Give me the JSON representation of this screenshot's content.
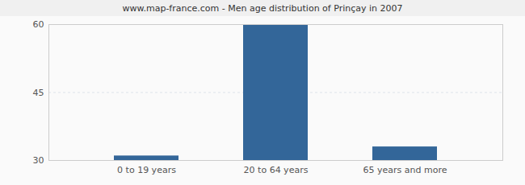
{
  "chart_data": {
    "type": "bar",
    "title": "www.map-france.com - Men age distribution of Prinçay in 2007",
    "categories": [
      "0 to 19 years",
      "20 to 64 years",
      "65 years and more"
    ],
    "values": [
      31,
      60,
      33
    ],
    "color": "#336699",
    "ylim": [
      30,
      60
    ],
    "yticks": [
      30,
      45,
      60
    ],
    "grid": true
  }
}
